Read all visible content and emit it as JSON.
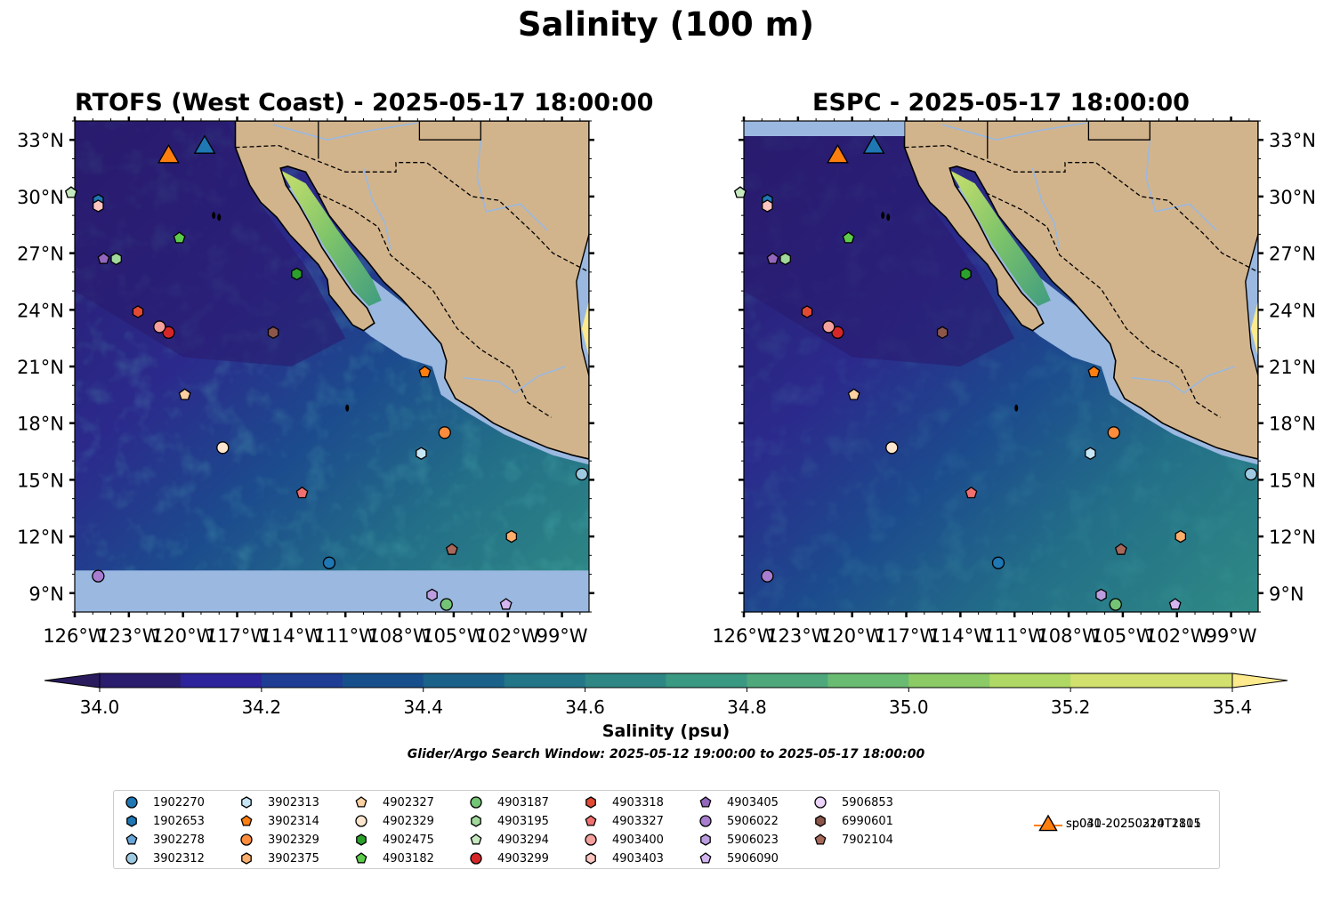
{
  "title": "Salinity (100 m)",
  "panels": [
    {
      "title": "RTOFS (West Coast) - 2025-05-17 18:00:00",
      "model": "rtofs"
    },
    {
      "title": "ESPC - 2025-05-17 18:00:00",
      "model": "espc"
    }
  ],
  "map": {
    "extent": {
      "lon_min": -126,
      "lon_max": -97.5,
      "lat_min": 8,
      "lat_max": 34
    },
    "lon_ticks": [
      "126°W",
      "123°W",
      "120°W",
      "117°W",
      "114°W",
      "111°W",
      "108°W",
      "105°W",
      "102°W",
      "99°W"
    ],
    "lat_ticks": [
      "9°N",
      "12°N",
      "15°N",
      "18°N",
      "21°N",
      "24°N",
      "27°N",
      "30°N",
      "33°N"
    ],
    "land_color": "#d2b48c",
    "nodata_color": "#9ab8e0"
  },
  "colorbar": {
    "label": "Salinity (psu)",
    "ticks": [
      "34.0",
      "34.2",
      "34.4",
      "34.6",
      "34.8",
      "35.0",
      "35.2",
      "35.4"
    ],
    "min": 34.0,
    "max": 35.4,
    "step": 0.1,
    "colors": [
      "#2a1d6e",
      "#2d239a",
      "#1f3d95",
      "#174f8c",
      "#1a6289",
      "#237588",
      "#2e8785",
      "#3a9982",
      "#4ea87c",
      "#6abb72",
      "#8cca66",
      "#b0d864",
      "#d2e06e"
    ],
    "under_color": "#2a1a5e",
    "over_color": "#fdea8d"
  },
  "search_window": "Glider/Argo Search Window: 2025-05-12 19:00:00 to 2025-05-17 18:00:00",
  "floats": [
    {
      "id": "1902270",
      "shape": "circle",
      "color": "#1f77b4",
      "lon": -111.9,
      "lat": 10.6
    },
    {
      "id": "1902653",
      "shape": "hexagon",
      "color": "#1f77b4",
      "lon": -124.7,
      "lat": 29.8
    },
    {
      "id": "3902278",
      "shape": "pentagon",
      "color": "#6aa7d8",
      "lon": -126.2,
      "lat": 30.2
    },
    {
      "id": "3902312",
      "shape": "circle",
      "color": "#9ecae1",
      "lon": -97.9,
      "lat": 15.3
    },
    {
      "id": "3902313",
      "shape": "hexagon",
      "color": "#c6e6f5",
      "lon": -106.8,
      "lat": 16.4
    },
    {
      "id": "3902314",
      "shape": "pentagon",
      "color": "#ff7f0e",
      "lon": -106.6,
      "lat": 20.7
    },
    {
      "id": "3902329",
      "shape": "circle",
      "color": "#fd8d3c",
      "lon": -105.5,
      "lat": 17.5
    },
    {
      "id": "3902375",
      "shape": "hexagon",
      "color": "#fdae6b",
      "lon": -101.8,
      "lat": 12.0
    },
    {
      "id": "4902327",
      "shape": "pentagon",
      "color": "#fdd0a2",
      "lon": -119.9,
      "lat": 19.5
    },
    {
      "id": "4902329",
      "shape": "circle",
      "color": "#fee6ce",
      "lon": -117.8,
      "lat": 16.7
    },
    {
      "id": "4902475",
      "shape": "hexagon",
      "color": "#2ca02c",
      "lon": -113.7,
      "lat": 25.9
    },
    {
      "id": "4903182",
      "shape": "pentagon",
      "color": "#5ccc4a",
      "lon": -120.2,
      "lat": 27.8
    },
    {
      "id": "4903187",
      "shape": "circle",
      "color": "#74c476",
      "lon": -105.4,
      "lat": 8.4
    },
    {
      "id": "4903195",
      "shape": "hexagon",
      "color": "#a1d99b",
      "lon": -123.7,
      "lat": 26.7
    },
    {
      "id": "4903294",
      "shape": "pentagon",
      "color": "#c7e9c0",
      "lon": -126.2,
      "lat": 30.2
    },
    {
      "id": "4903299",
      "shape": "circle",
      "color": "#d62728",
      "lon": -120.8,
      "lat": 22.8
    },
    {
      "id": "4903318",
      "shape": "hexagon",
      "color": "#e34a33",
      "lon": -122.5,
      "lat": 23.9
    },
    {
      "id": "4903327",
      "shape": "pentagon",
      "color": "#f07070",
      "lon": -113.4,
      "lat": 14.3
    },
    {
      "id": "4903400",
      "shape": "circle",
      "color": "#f4a09c",
      "lon": -121.3,
      "lat": 23.1
    },
    {
      "id": "4903403",
      "shape": "hexagon",
      "color": "#fcc5c0",
      "lon": -124.7,
      "lat": 29.5
    },
    {
      "id": "4903405",
      "shape": "pentagon",
      "color": "#9467bd",
      "lon": -124.4,
      "lat": 26.7
    },
    {
      "id": "5906022",
      "shape": "circle",
      "color": "#a87dcf",
      "lon": -124.7,
      "lat": 9.9
    },
    {
      "id": "5906023",
      "shape": "hexagon",
      "color": "#bc9ee0",
      "lon": -106.2,
      "lat": 8.9
    },
    {
      "id": "5906090",
      "shape": "pentagon",
      "color": "#d4b5f0",
      "lon": -102.1,
      "lat": 8.4
    },
    {
      "id": "5906853",
      "shape": "circle",
      "color": "#ecd5fb",
      "lon": -126.4,
      "lat": 9.9,
      "offmap": true
    },
    {
      "id": "6990601",
      "shape": "hexagon",
      "color": "#8c564b",
      "lon": -115.0,
      "lat": 22.8
    },
    {
      "id": "7902104",
      "shape": "pentagon",
      "color": "#a8685a",
      "lon": -105.1,
      "lat": 11.3
    }
  ],
  "gliders": [
    {
      "id": "sp030-20250310T2101",
      "color": "#1f77b4",
      "lon": -118.8,
      "lat": 32.6
    },
    {
      "id": "sp041-20250224T1815",
      "color": "#ff7f0e",
      "lon": -120.8,
      "lat": 32.1
    }
  ]
}
